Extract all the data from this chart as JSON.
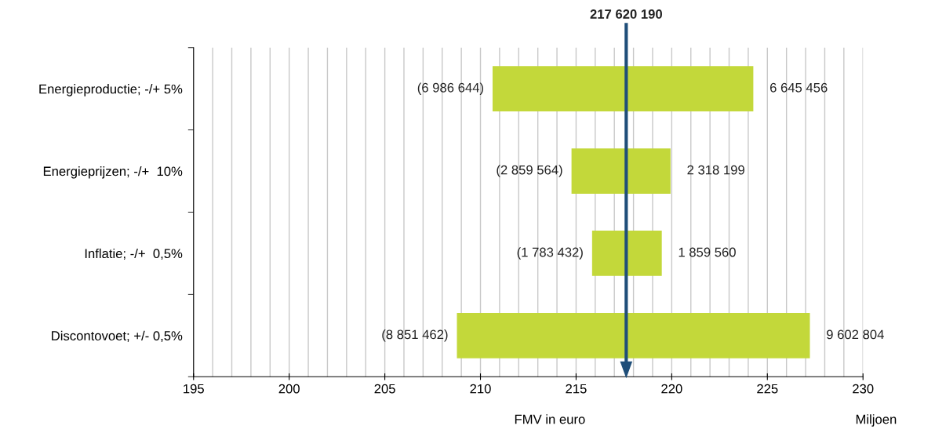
{
  "chart_data": {
    "type": "bar",
    "orientation": "horizontal",
    "categories": [
      "Energieproductie; -/+ 5%",
      "Energieprijzen; -/+  10%",
      "Inflatie; -/+  0,5%",
      "Discontovoet; +/- 0,5%"
    ],
    "base": [
      210.633546,
      214.760626,
      215.836758,
      208.768728
    ],
    "values": [
      13.6321,
      5.177763,
      3.642992,
      18.454266
    ],
    "color": "#c3d83a",
    "xlim": [
      195,
      230
    ],
    "xticks": [
      195,
      {
        "value": 196,
        "label": null
      },
      {
        "value": 197,
        "label": null
      },
      {
        "value": 198,
        "label": null
      },
      {
        "value": 199,
        "label": null
      },
      200,
      {
        "value": 201,
        "label": null
      },
      {
        "value": 202,
        "label": null
      },
      {
        "value": 203,
        "label": null
      },
      {
        "value": 204,
        "label": null
      },
      205,
      {
        "value": 206,
        "label": null
      },
      {
        "value": 207,
        "label": null
      },
      {
        "value": 208,
        "label": null
      },
      {
        "value": 209,
        "label": null
      },
      210,
      {
        "value": 211,
        "label": null
      },
      {
        "value": 212,
        "label": null
      },
      {
        "value": 213,
        "label": null
      },
      {
        "value": 214,
        "label": null
      },
      215,
      {
        "value": 216,
        "label": null
      },
      {
        "value": 217,
        "label": null
      },
      {
        "value": 218,
        "label": null
      },
      {
        "value": 219,
        "label": null
      },
      220,
      {
        "value": 221,
        "label": null
      },
      {
        "value": 222,
        "label": null
      },
      {
        "value": 223,
        "label": null
      },
      {
        "value": 224,
        "label": null
      },
      225,
      {
        "value": 226,
        "label": null
      },
      {
        "value": 227,
        "label": null
      },
      {
        "value": 228,
        "label": null
      },
      {
        "value": 229,
        "label": null
      },
      230
    ],
    "grid": "x",
    "ref_lines": [
      {
        "axis": "x",
        "value": 217.62019,
        "label": "217 620 190",
        "color": "#1f4e79"
      }
    ],
    "annotations": [
      {
        "text": "(6 986 644)",
        "x": 210.633546,
        "y": "Energieproductie; -/+ 5%"
      },
      {
        "text": "6 645 456",
        "x": 224.265646,
        "y": "Energieproductie; -/+ 5%"
      },
      {
        "text": "(2 859 564)",
        "x": 214.760626,
        "y": "Energieprijzen; -/+  10%"
      },
      {
        "text": "2 318 199",
        "x": 219.938389,
        "y": "Energieprijzen; -/+  10%"
      },
      {
        "text": "(1 783 432)",
        "x": 215.836758,
        "y": "Inflatie; -/+  0,5%"
      },
      {
        "text": "1 859 560",
        "x": 219.47975,
        "y": "Inflatie; -/+  0,5%"
      },
      {
        "text": "(8 851 462)",
        "x": 208.768728,
        "y": "Discontovoet; +/- 0,5%"
      },
      {
        "text": "9 602 804",
        "x": 227.222994,
        "y": "Discontovoet; +/- 0,5%"
      },
      "FMV in euro",
      "Miljoen"
    ]
  }
}
